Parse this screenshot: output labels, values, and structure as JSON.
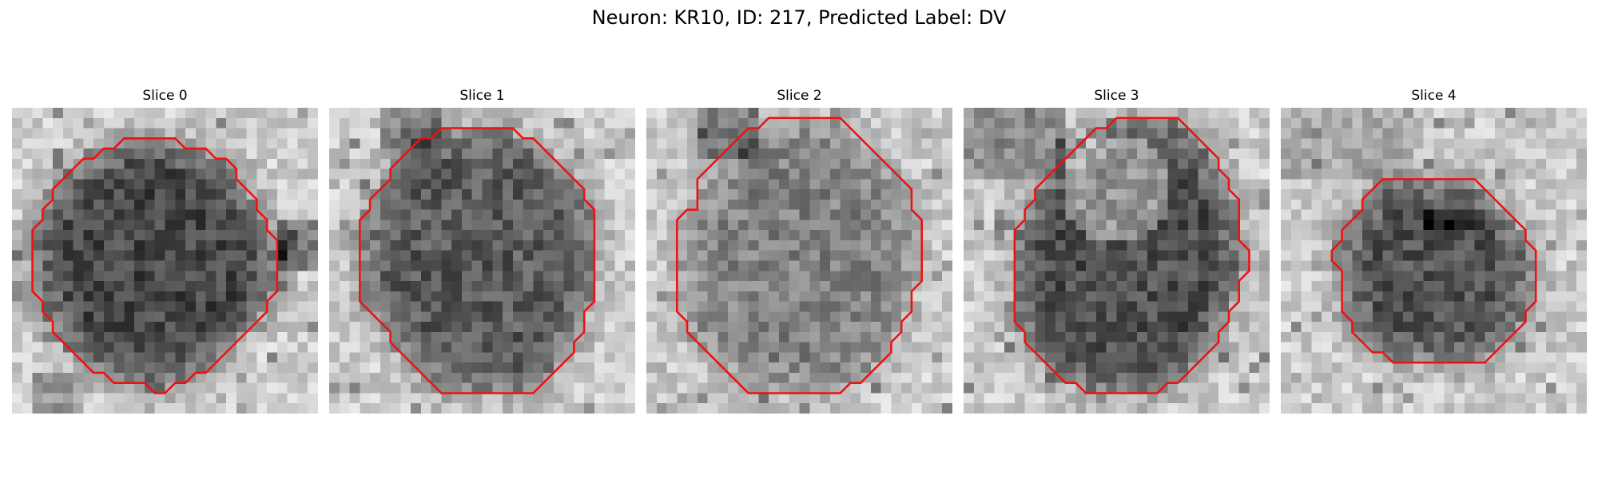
{
  "figure": {
    "title": "Neuron: KR10, ID: 217, Predicted Label: DV"
  },
  "panels": [
    {
      "title": "Slice 0",
      "description": "dark round neuron body, darkest at center-top, with a dark bump on the right edge",
      "outline": [
        [
          13,
          3
        ],
        [
          16,
          3
        ],
        [
          17,
          4
        ],
        [
          19,
          4
        ],
        [
          20,
          5
        ],
        [
          21,
          5
        ],
        [
          22,
          6
        ],
        [
          22,
          7
        ],
        [
          23,
          8
        ],
        [
          24,
          9
        ],
        [
          24,
          10
        ],
        [
          25,
          11
        ],
        [
          25,
          12
        ],
        [
          26,
          13
        ],
        [
          26,
          14
        ],
        [
          26,
          15
        ],
        [
          26,
          16
        ],
        [
          26,
          17
        ],
        [
          26,
          18
        ],
        [
          25,
          19
        ],
        [
          25,
          20
        ],
        [
          24,
          21
        ],
        [
          23,
          22
        ],
        [
          22,
          23
        ],
        [
          21,
          24
        ],
        [
          20,
          25
        ],
        [
          19,
          26
        ],
        [
          18,
          26
        ],
        [
          17,
          27
        ],
        [
          16,
          27
        ],
        [
          15,
          28
        ],
        [
          14,
          28
        ],
        [
          13,
          27
        ],
        [
          12,
          27
        ],
        [
          11,
          27
        ],
        [
          10,
          27
        ],
        [
          9,
          26
        ],
        [
          8,
          26
        ],
        [
          7,
          25
        ],
        [
          6,
          24
        ],
        [
          5,
          23
        ],
        [
          4,
          22
        ],
        [
          4,
          21
        ],
        [
          3,
          20
        ],
        [
          3,
          19
        ],
        [
          2,
          18
        ],
        [
          2,
          17
        ],
        [
          2,
          16
        ],
        [
          2,
          15
        ],
        [
          2,
          14
        ],
        [
          2,
          13
        ],
        [
          2,
          12
        ],
        [
          3,
          11
        ],
        [
          3,
          10
        ],
        [
          4,
          9
        ],
        [
          4,
          8
        ],
        [
          5,
          7
        ],
        [
          6,
          6
        ],
        [
          7,
          5
        ],
        [
          8,
          5
        ],
        [
          9,
          4
        ],
        [
          10,
          4
        ],
        [
          11,
          3
        ],
        [
          12,
          3
        ]
      ],
      "contrast": 1.0
    },
    {
      "title": "Slice 1",
      "description": "dark textured neuron body filling most of the frame",
      "outline": [
        [
          11,
          2
        ],
        [
          18,
          2
        ],
        [
          19,
          3
        ],
        [
          20,
          3
        ],
        [
          21,
          4
        ],
        [
          22,
          5
        ],
        [
          23,
          6
        ],
        [
          24,
          7
        ],
        [
          25,
          8
        ],
        [
          25,
          9
        ],
        [
          26,
          10
        ],
        [
          26,
          11
        ],
        [
          26,
          12
        ],
        [
          26,
          13
        ],
        [
          26,
          14
        ],
        [
          26,
          15
        ],
        [
          26,
          16
        ],
        [
          26,
          17
        ],
        [
          26,
          18
        ],
        [
          26,
          19
        ],
        [
          25,
          20
        ],
        [
          25,
          21
        ],
        [
          25,
          22
        ],
        [
          24,
          23
        ],
        [
          24,
          24
        ],
        [
          23,
          25
        ],
        [
          22,
          26
        ],
        [
          21,
          27
        ],
        [
          20,
          28
        ],
        [
          19,
          28
        ],
        [
          18,
          28
        ],
        [
          17,
          28
        ],
        [
          16,
          28
        ],
        [
          15,
          28
        ],
        [
          14,
          28
        ],
        [
          13,
          28
        ],
        [
          12,
          28
        ],
        [
          11,
          28
        ],
        [
          10,
          27
        ],
        [
          9,
          26
        ],
        [
          8,
          25
        ],
        [
          7,
          24
        ],
        [
          6,
          23
        ],
        [
          6,
          22
        ],
        [
          5,
          21
        ],
        [
          4,
          20
        ],
        [
          3,
          19
        ],
        [
          3,
          18
        ],
        [
          3,
          17
        ],
        [
          3,
          16
        ],
        [
          3,
          15
        ],
        [
          3,
          14
        ],
        [
          3,
          13
        ],
        [
          3,
          12
        ],
        [
          3,
          11
        ],
        [
          4,
          10
        ],
        [
          4,
          9
        ],
        [
          5,
          8
        ],
        [
          6,
          7
        ],
        [
          6,
          6
        ],
        [
          7,
          5
        ],
        [
          8,
          4
        ],
        [
          9,
          3
        ],
        [
          10,
          3
        ]
      ],
      "contrast": 0.85
    },
    {
      "title": "Slice 2",
      "description": "lighter grey textured neuron body",
      "outline": [
        [
          13,
          1
        ],
        [
          19,
          1
        ],
        [
          20,
          2
        ],
        [
          21,
          3
        ],
        [
          22,
          4
        ],
        [
          23,
          5
        ],
        [
          24,
          6
        ],
        [
          25,
          7
        ],
        [
          26,
          8
        ],
        [
          26,
          9
        ],
        [
          26,
          10
        ],
        [
          27,
          11
        ],
        [
          27,
          12
        ],
        [
          27,
          13
        ],
        [
          27,
          14
        ],
        [
          27,
          15
        ],
        [
          27,
          16
        ],
        [
          27,
          17
        ],
        [
          26,
          18
        ],
        [
          26,
          19
        ],
        [
          26,
          20
        ],
        [
          25,
          21
        ],
        [
          25,
          22
        ],
        [
          24,
          23
        ],
        [
          24,
          24
        ],
        [
          23,
          25
        ],
        [
          22,
          26
        ],
        [
          21,
          27
        ],
        [
          20,
          27
        ],
        [
          19,
          28
        ],
        [
          18,
          28
        ],
        [
          17,
          28
        ],
        [
          16,
          28
        ],
        [
          15,
          28
        ],
        [
          14,
          28
        ],
        [
          13,
          28
        ],
        [
          12,
          28
        ],
        [
          11,
          28
        ],
        [
          10,
          28
        ],
        [
          9,
          27
        ],
        [
          8,
          26
        ],
        [
          7,
          25
        ],
        [
          6,
          24
        ],
        [
          5,
          23
        ],
        [
          4,
          22
        ],
        [
          4,
          21
        ],
        [
          3,
          20
        ],
        [
          3,
          19
        ],
        [
          3,
          18
        ],
        [
          3,
          17
        ],
        [
          3,
          16
        ],
        [
          3,
          15
        ],
        [
          3,
          14
        ],
        [
          3,
          13
        ],
        [
          3,
          12
        ],
        [
          3,
          11
        ],
        [
          4,
          10
        ],
        [
          5,
          10
        ],
        [
          5,
          9
        ],
        [
          5,
          8
        ],
        [
          5,
          7
        ],
        [
          6,
          6
        ],
        [
          7,
          5
        ],
        [
          8,
          4
        ],
        [
          9,
          3
        ],
        [
          10,
          2
        ],
        [
          11,
          2
        ],
        [
          12,
          1
        ]
      ],
      "contrast": 0.55
    },
    {
      "title": "Slice 3",
      "description": "neuron with a lighter nucleus region at top center and dark cytoplasm below",
      "outline": [
        [
          15,
          1
        ],
        [
          21,
          1
        ],
        [
          22,
          2
        ],
        [
          23,
          3
        ],
        [
          24,
          4
        ],
        [
          25,
          5
        ],
        [
          25,
          6
        ],
        [
          26,
          7
        ],
        [
          26,
          8
        ],
        [
          27,
          9
        ],
        [
          27,
          10
        ],
        [
          27,
          11
        ],
        [
          27,
          12
        ],
        [
          27,
          13
        ],
        [
          28,
          14
        ],
        [
          28,
          15
        ],
        [
          28,
          16
        ],
        [
          27,
          17
        ],
        [
          27,
          18
        ],
        [
          27,
          19
        ],
        [
          26,
          20
        ],
        [
          26,
          21
        ],
        [
          25,
          22
        ],
        [
          25,
          23
        ],
        [
          24,
          24
        ],
        [
          23,
          25
        ],
        [
          22,
          26
        ],
        [
          21,
          27
        ],
        [
          20,
          27
        ],
        [
          19,
          28
        ],
        [
          18,
          28
        ],
        [
          17,
          28
        ],
        [
          16,
          28
        ],
        [
          15,
          28
        ],
        [
          14,
          28
        ],
        [
          13,
          28
        ],
        [
          12,
          28
        ],
        [
          11,
          27
        ],
        [
          10,
          27
        ],
        [
          9,
          26
        ],
        [
          8,
          25
        ],
        [
          7,
          24
        ],
        [
          6,
          23
        ],
        [
          6,
          22
        ],
        [
          5,
          21
        ],
        [
          5,
          20
        ],
        [
          5,
          19
        ],
        [
          5,
          18
        ],
        [
          5,
          17
        ],
        [
          5,
          16
        ],
        [
          5,
          15
        ],
        [
          5,
          14
        ],
        [
          5,
          13
        ],
        [
          5,
          12
        ],
        [
          6,
          11
        ],
        [
          6,
          10
        ],
        [
          7,
          9
        ],
        [
          7,
          8
        ],
        [
          8,
          7
        ],
        [
          9,
          6
        ],
        [
          10,
          5
        ],
        [
          11,
          4
        ],
        [
          12,
          3
        ],
        [
          13,
          2
        ],
        [
          14,
          2
        ]
      ],
      "contrast": 0.95
    },
    {
      "title": "Slice 4",
      "description": "smaller dark neuron body centered in the frame",
      "outline": [
        [
          10,
          7
        ],
        [
          19,
          7
        ],
        [
          20,
          8
        ],
        [
          21,
          9
        ],
        [
          22,
          10
        ],
        [
          23,
          11
        ],
        [
          24,
          12
        ],
        [
          24,
          13
        ],
        [
          25,
          14
        ],
        [
          25,
          15
        ],
        [
          25,
          16
        ],
        [
          25,
          17
        ],
        [
          25,
          18
        ],
        [
          25,
          19
        ],
        [
          24,
          20
        ],
        [
          24,
          21
        ],
        [
          23,
          22
        ],
        [
          22,
          23
        ],
        [
          21,
          24
        ],
        [
          20,
          25
        ],
        [
          19,
          25
        ],
        [
          18,
          25
        ],
        [
          17,
          25
        ],
        [
          16,
          25
        ],
        [
          15,
          25
        ],
        [
          14,
          25
        ],
        [
          13,
          25
        ],
        [
          12,
          25
        ],
        [
          11,
          25
        ],
        [
          10,
          24
        ],
        [
          9,
          24
        ],
        [
          8,
          23
        ],
        [
          7,
          22
        ],
        [
          7,
          21
        ],
        [
          6,
          20
        ],
        [
          6,
          19
        ],
        [
          6,
          18
        ],
        [
          6,
          17
        ],
        [
          6,
          16
        ],
        [
          5,
          15
        ],
        [
          5,
          14
        ],
        [
          6,
          13
        ],
        [
          6,
          12
        ],
        [
          7,
          11
        ],
        [
          8,
          10
        ],
        [
          8,
          9
        ],
        [
          9,
          8
        ]
      ],
      "contrast": 0.9
    }
  ],
  "colors": {
    "contour": "#ee1111",
    "background_gray": "#d8d8d8",
    "cell_gray": "#333333"
  }
}
